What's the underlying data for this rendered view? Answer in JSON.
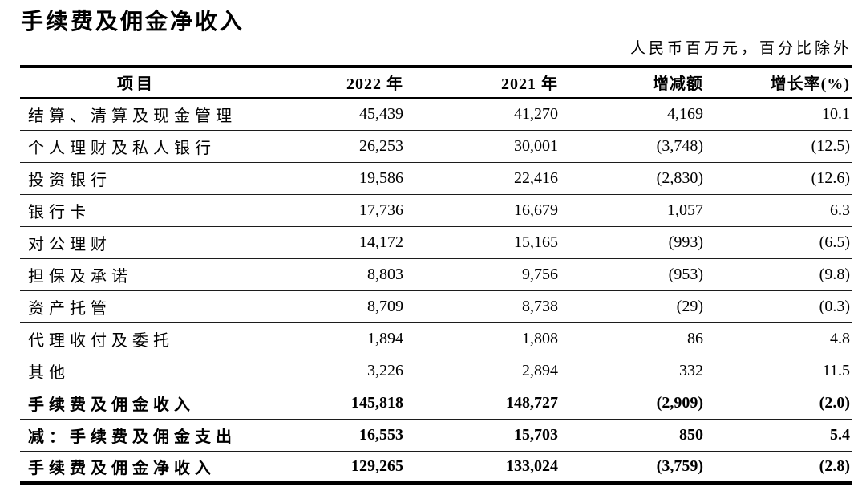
{
  "title": "手续费及佣金净收入",
  "unit_note": "人民币百万元，百分比除外",
  "table": {
    "columns": [
      "项目",
      "2022 年",
      "2021 年",
      "增减额",
      "增长率(%)"
    ],
    "rows": [
      {
        "cells": [
          "结算、清算及现金管理",
          "45,439",
          "41,270",
          "4,169",
          "10.1"
        ],
        "bold": false
      },
      {
        "cells": [
          "个人理财及私人银行",
          "26,253",
          "30,001",
          "(3,748)",
          "(12.5)"
        ],
        "bold": false
      },
      {
        "cells": [
          "投资银行",
          "19,586",
          "22,416",
          "(2,830)",
          "(12.6)"
        ],
        "bold": false
      },
      {
        "cells": [
          "银行卡",
          "17,736",
          "16,679",
          "1,057",
          "6.3"
        ],
        "bold": false
      },
      {
        "cells": [
          "对公理财",
          "14,172",
          "15,165",
          "(993)",
          "(6.5)"
        ],
        "bold": false
      },
      {
        "cells": [
          "担保及承诺",
          "8,803",
          "9,756",
          "(953)",
          "(9.8)"
        ],
        "bold": false
      },
      {
        "cells": [
          "资产托管",
          "8,709",
          "8,738",
          "(29)",
          "(0.3)"
        ],
        "bold": false
      },
      {
        "cells": [
          "代理收付及委托",
          "1,894",
          "1,808",
          "86",
          "4.8"
        ],
        "bold": false
      },
      {
        "cells": [
          "其他",
          "3,226",
          "2,894",
          "332",
          "11.5"
        ],
        "bold": false
      },
      {
        "cells": [
          "手续费及佣金收入",
          "145,818",
          "148,727",
          "(2,909)",
          "(2.0)"
        ],
        "bold": true
      },
      {
        "cells": [
          "减：手续费及佣金支出",
          "16,553",
          "15,703",
          "850",
          "5.4"
        ],
        "bold": true
      },
      {
        "cells": [
          "手续费及佣金净收入",
          "129,265",
          "133,024",
          "(3,759)",
          "(2.8)"
        ],
        "bold": true
      }
    ]
  }
}
